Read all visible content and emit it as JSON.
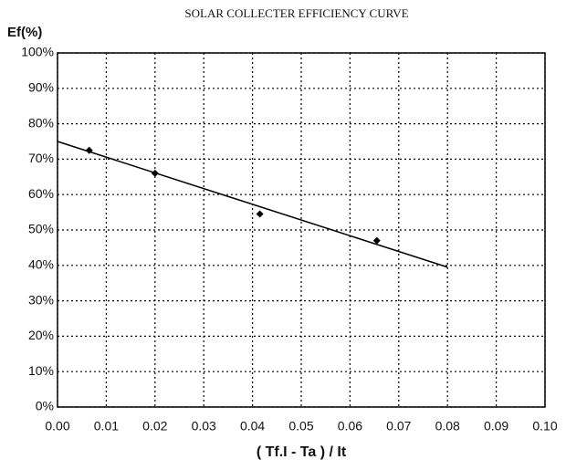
{
  "chart_data": {
    "type": "scatter",
    "title": "SOLAR COLLECTER EFFICIENCY CURVE",
    "y_label": "Ef(%)",
    "x_label": "( Tf.I - Ta ) / It",
    "x": [
      0.0065,
      0.02,
      0.0415,
      0.0655
    ],
    "values": [
      72.5,
      66,
      54.5,
      47
    ],
    "color": "#000000",
    "trendline": {
      "x": [
        0,
        0.08
      ],
      "values": [
        75,
        39.5
      ]
    },
    "xlim": [
      0,
      0.1
    ],
    "ylim": [
      0,
      100
    ],
    "xticks": [
      {
        "value": 0,
        "label": "0.00"
      },
      0.01,
      0.02,
      0.03,
      0.04,
      0.05,
      0.06,
      0.07,
      0.08,
      0.09,
      {
        "value": 0.1,
        "label": "0.10"
      }
    ],
    "yticks": [
      {
        "value": 0,
        "label": "0%"
      },
      {
        "value": 10,
        "label": "10%"
      },
      {
        "value": 20,
        "label": "20%"
      },
      {
        "value": 30,
        "label": "30%"
      },
      {
        "value": 40,
        "label": "40%"
      },
      {
        "value": 50,
        "label": "50%"
      },
      {
        "value": 60,
        "label": "60%"
      },
      {
        "value": 70,
        "label": "70%"
      },
      {
        "value": 80,
        "label": "80%"
      },
      {
        "value": 90,
        "label": "90%"
      },
      {
        "value": 100,
        "label": "100%"
      }
    ],
    "grid": true
  }
}
